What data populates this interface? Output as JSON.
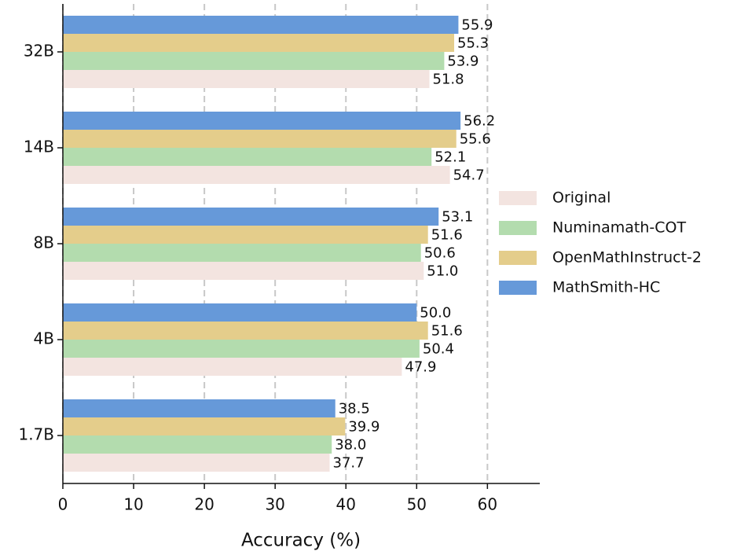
{
  "chart_data": {
    "type": "barh",
    "xlabel": "Accuracy (%)",
    "categories": [
      "1.7B",
      "4B",
      "8B",
      "14B",
      "32B"
    ],
    "series": [
      {
        "name": "Original",
        "color": "#f3e4e0",
        "values": [
          37.7,
          47.9,
          51.0,
          54.7,
          51.8
        ],
        "value_labels": [
          "37.7",
          "47.9",
          "51.0",
          "54.7",
          "51.8"
        ]
      },
      {
        "name": "Numinamath-COT",
        "color": "#b3dcae",
        "values": [
          38.0,
          50.4,
          50.6,
          52.1,
          53.9
        ],
        "value_labels": [
          "38.0",
          "50.4",
          "50.6",
          "52.1",
          "53.9"
        ]
      },
      {
        "name": "OpenMathInstruct-2",
        "color": "#e4cd8b",
        "values": [
          39.9,
          51.6,
          51.6,
          55.6,
          55.3
        ],
        "value_labels": [
          "39.9",
          "51.6",
          "51.6",
          "55.6",
          "55.3"
        ]
      },
      {
        "name": "MathSmith-HC",
        "color": "#6699d9",
        "values": [
          38.5,
          50.0,
          53.1,
          56.2,
          55.9
        ],
        "value_labels": [
          "38.5",
          "50.0",
          "53.1",
          "56.2",
          "55.9"
        ]
      }
    ],
    "xlim": [
      0,
      67.4
    ],
    "xticks": [
      0,
      10,
      20,
      30,
      40,
      50,
      60
    ],
    "grid": true,
    "legend": "right"
  }
}
